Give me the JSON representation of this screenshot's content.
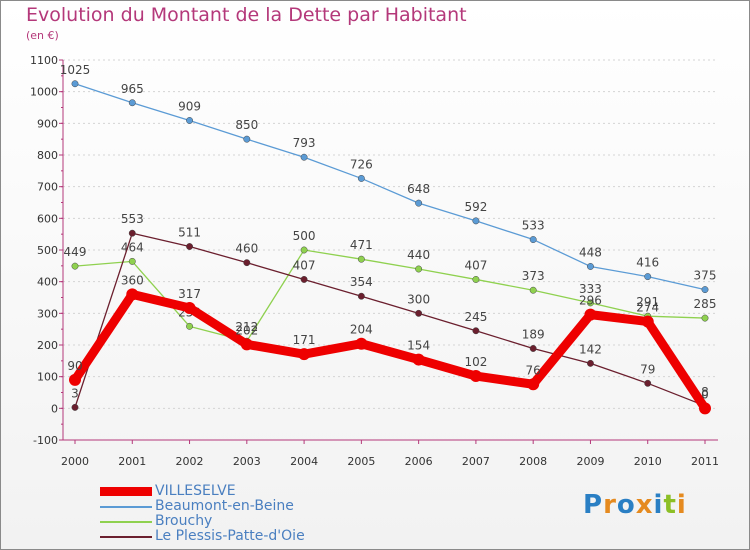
{
  "chart_data": {
    "type": "line",
    "title": "Evolution du Montant de la Dette par Habitant",
    "subtitle": "(en €)",
    "x": [
      "2000",
      "2001",
      "2002",
      "2003",
      "2004",
      "2005",
      "2006",
      "2007",
      "2008",
      "2009",
      "2010",
      "2011"
    ],
    "yticks": [
      "-100",
      "0",
      "100",
      "200",
      "300",
      "400",
      "500",
      "600",
      "700",
      "800",
      "900",
      "1000",
      "1100"
    ],
    "ylim": [
      -100,
      1100
    ],
    "series": [
      {
        "name": "Beaumont-en-Beine",
        "color": "#5b9bd5",
        "values": [
          1025,
          965,
          909,
          850,
          793,
          726,
          648,
          592,
          533,
          448,
          416,
          375
        ]
      },
      {
        "name": "Brouchy",
        "color": "#8fd14f",
        "values": [
          449,
          464,
          259,
          212,
          500,
          471,
          440,
          407,
          373,
          333,
          291,
          285
        ]
      },
      {
        "name": "Le Plessis-Patte-d'Oie",
        "color": "#6b1f2e",
        "values": [
          3,
          553,
          511,
          460,
          407,
          354,
          300,
          245,
          189,
          142,
          79,
          8
        ]
      },
      {
        "name": "VILLESELVE",
        "color": "#ee0000",
        "values": [
          90,
          360,
          317,
          202,
          171,
          204,
          154,
          102,
          76,
          296,
          274,
          0
        ]
      }
    ]
  },
  "legend": [
    "VILLESELVE",
    "Beaumont-en-Beine",
    "Brouchy",
    "Le Plessis-Patte-d'Oie"
  ],
  "logo": {
    "letters": [
      "P",
      "r",
      "o",
      "x",
      "i",
      "t",
      "i"
    ],
    "colors": [
      "#2a7fc4",
      "#e58a1f",
      "#2a7fc4",
      "#e58a1f",
      "#2a7fc4",
      "#8cbf26",
      "#e58a1f"
    ]
  }
}
